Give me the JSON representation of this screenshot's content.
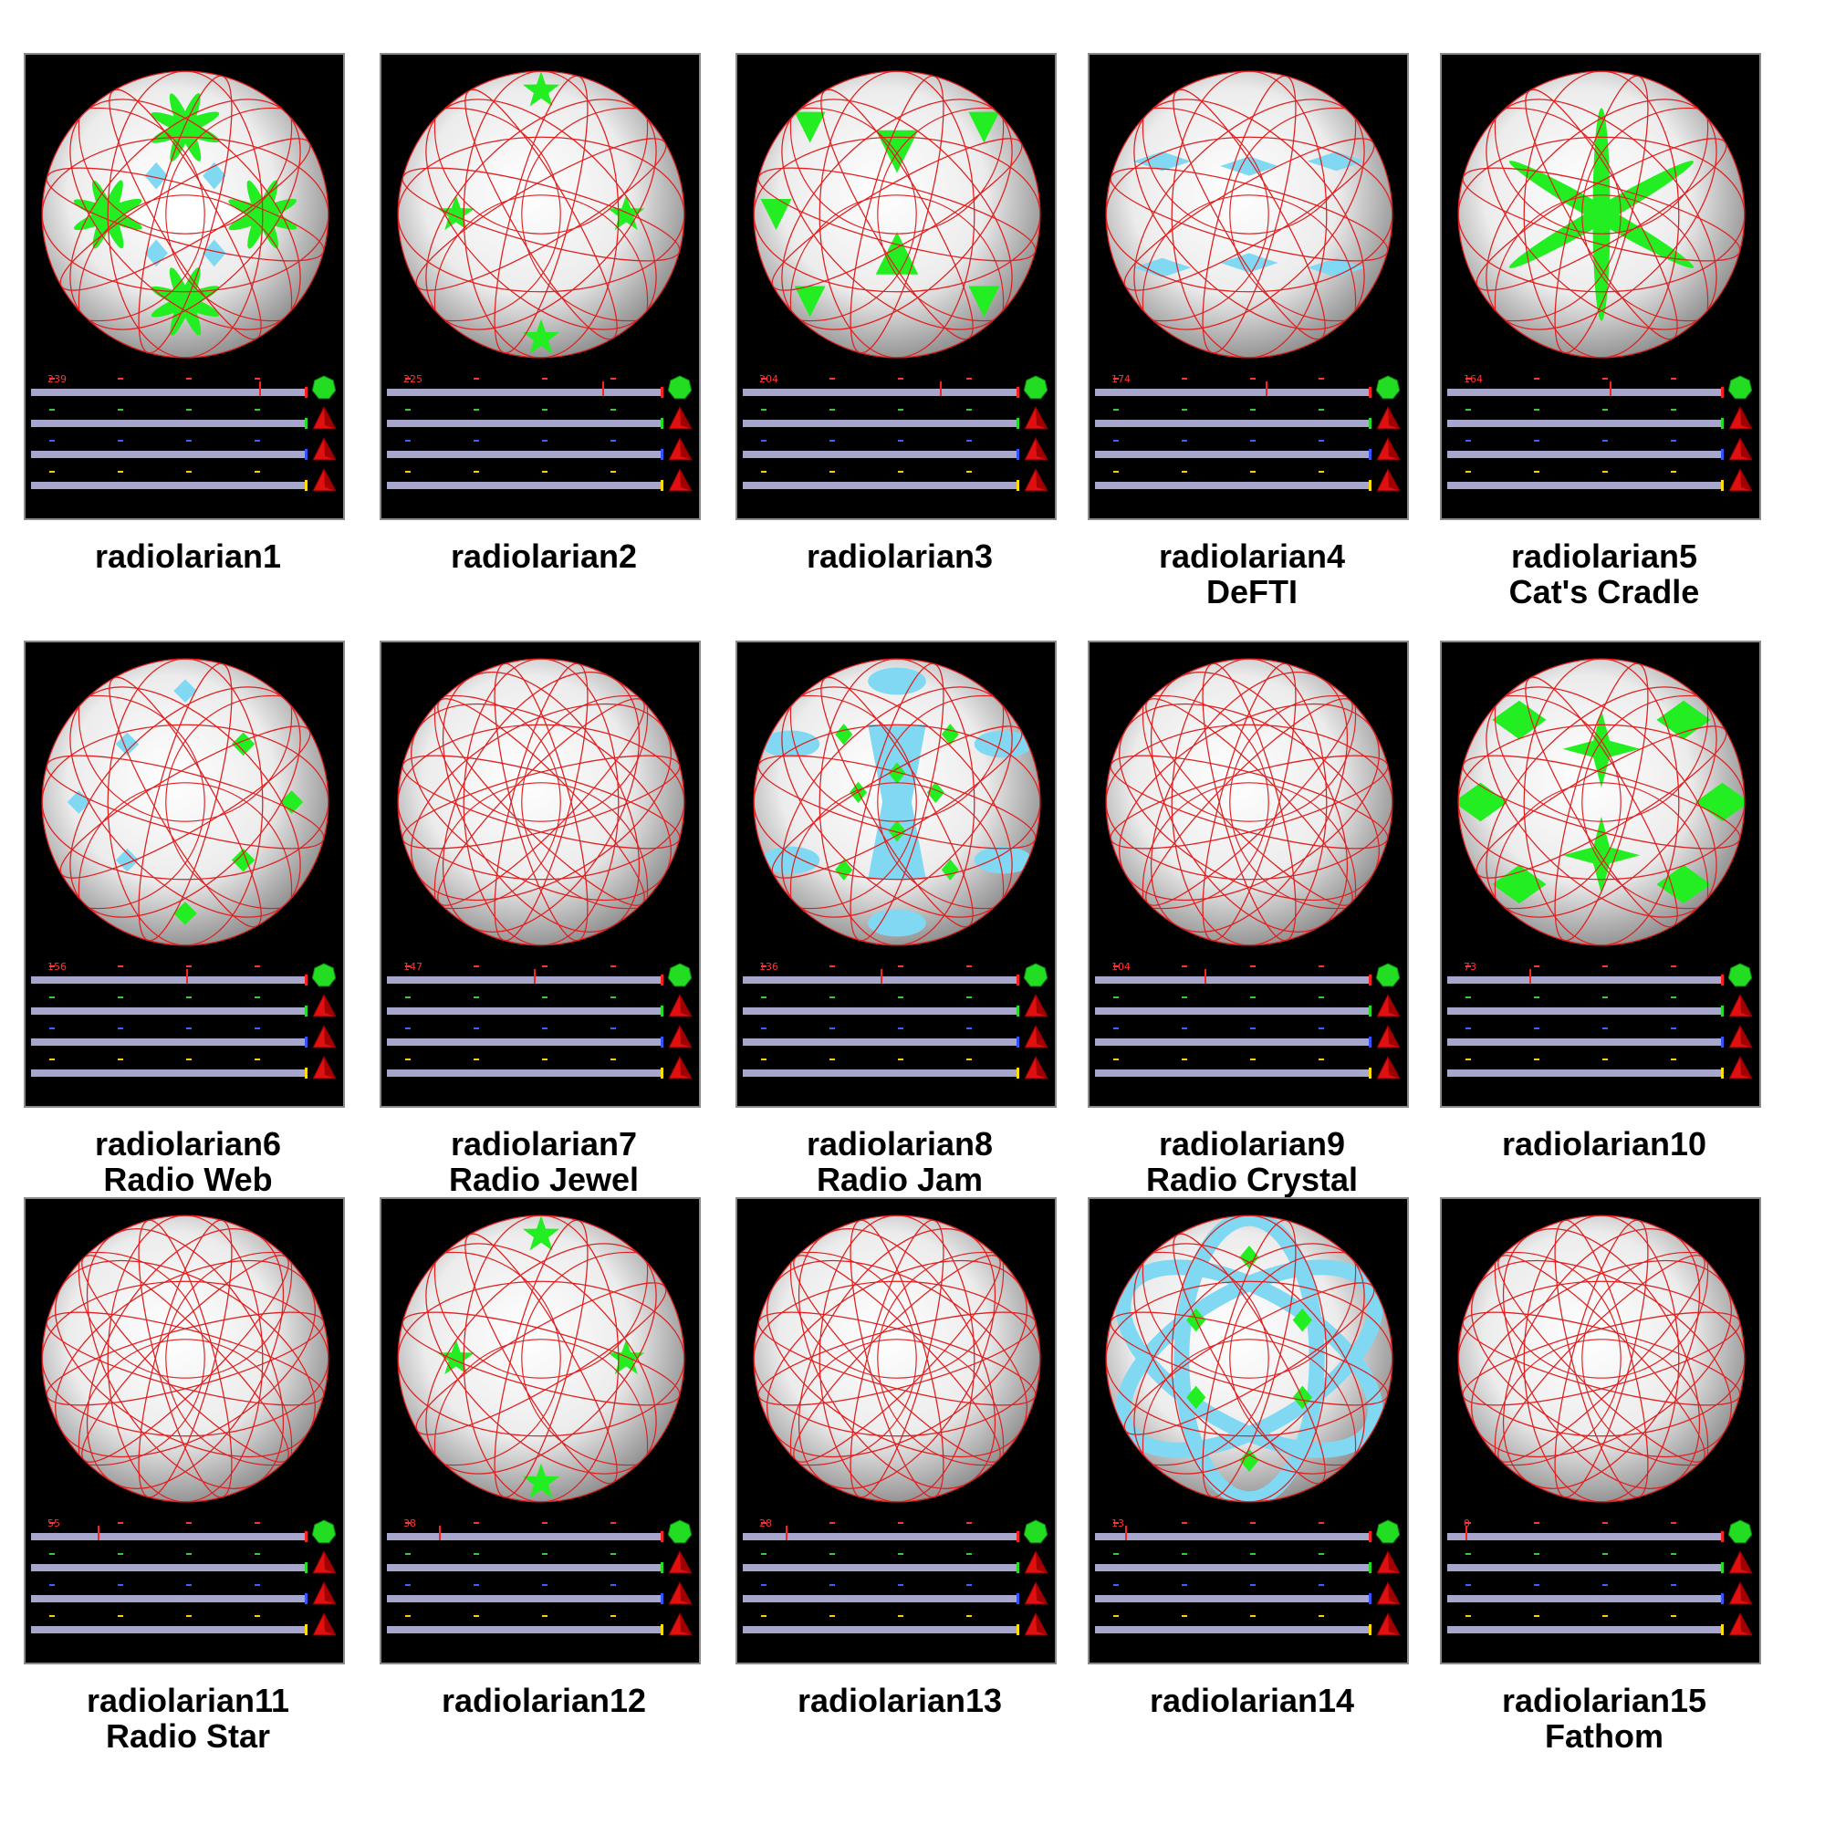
{
  "tiles": [
    {
      "name": "radiolarian1",
      "subtitle": "",
      "counter": "239",
      "theme": "leaf"
    },
    {
      "name": "radiolarian2",
      "subtitle": "",
      "counter": "225",
      "theme": "stars4"
    },
    {
      "name": "radiolarian3",
      "subtitle": "",
      "counter": "204",
      "theme": "tri"
    },
    {
      "name": "radiolarian4",
      "subtitle": "DeFTI",
      "counter": "174",
      "theme": "cyan"
    },
    {
      "name": "radiolarian5",
      "subtitle": "Cat's Cradle",
      "counter": "164",
      "theme": "cross"
    },
    {
      "name": "radiolarian6",
      "subtitle": "Radio Web",
      "counter": "156",
      "theme": "web"
    },
    {
      "name": "radiolarian7",
      "subtitle": "Radio Jewel",
      "counter": "147",
      "theme": "plain"
    },
    {
      "name": "radiolarian8",
      "subtitle": "Radio Jam",
      "counter": "136",
      "theme": "jam"
    },
    {
      "name": "radiolarian9",
      "subtitle": "Radio Crystal",
      "counter": "104",
      "theme": "plain"
    },
    {
      "name": "radiolarian10",
      "subtitle": "",
      "counter": "73",
      "theme": "bigstar"
    },
    {
      "name": "radiolarian11",
      "subtitle": "Radio Star",
      "counter": "55",
      "theme": "plain"
    },
    {
      "name": "radiolarian12",
      "subtitle": "",
      "counter": "38",
      "theme": "stars4"
    },
    {
      "name": "radiolarian13",
      "subtitle": "",
      "counter": "28",
      "theme": "plain"
    },
    {
      "name": "radiolarian14",
      "subtitle": "",
      "counter": "13",
      "theme": "bands"
    },
    {
      "name": "radiolarian15",
      "subtitle": "Fathom",
      "counter": "0",
      "theme": "plain"
    }
  ],
  "colors": {
    "panel_bg": "#000000",
    "line": "#e02020",
    "green": "#22ee22",
    "cyan": "#80d8f2",
    "track": "#a7a6cc",
    "button_top": "green-heptagon-icon",
    "button_rest": "red-triangle-icon"
  }
}
